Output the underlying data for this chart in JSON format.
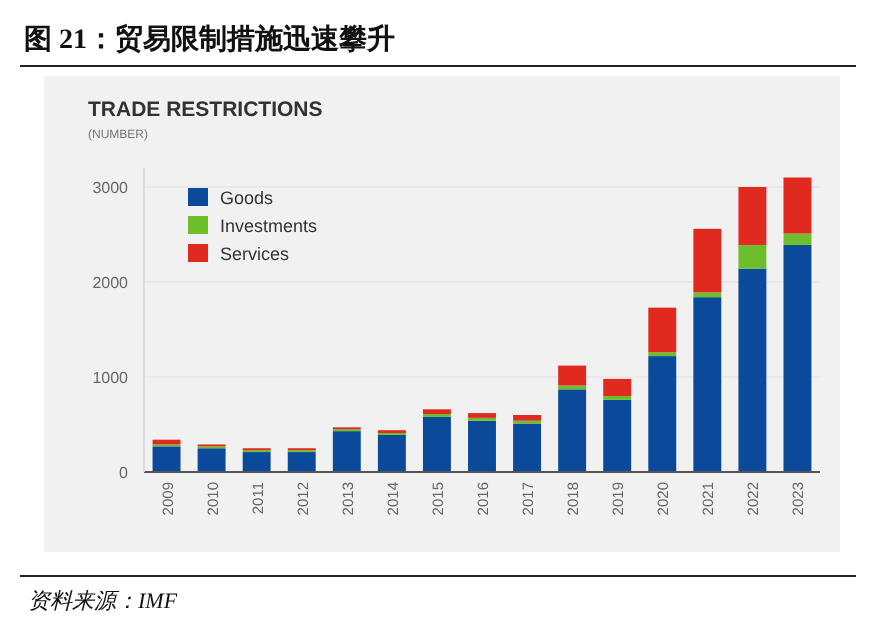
{
  "chart_data": {
    "type": "bar",
    "title": "图 21：贸易限制措施迅速攀升",
    "subtitle": "TRADE RESTRICTIONS",
    "ylabel": "(NUMBER)",
    "annotations": [
      "资料来源：IMF"
    ],
    "categories": [
      "2009",
      "2010",
      "2011",
      "2012",
      "2013",
      "2014",
      "2015",
      "2016",
      "2017",
      "2018",
      "2019",
      "2020",
      "2021",
      "2022",
      "2023"
    ],
    "stacked": true,
    "grid": "y",
    "legend": "top left",
    "ylim": [
      0,
      3200
    ],
    "yticks": [
      0,
      1000,
      2000,
      3000
    ],
    "series": [
      {
        "name": "Goods",
        "color": "#0b4a9a",
        "values": [
          270,
          250,
          210,
          210,
          430,
          390,
          580,
          540,
          510,
          870,
          760,
          1220,
          1840,
          2140,
          2390
        ]
      },
      {
        "name": "Investments",
        "color": "#6cbf2b",
        "values": [
          20,
          20,
          20,
          20,
          20,
          20,
          30,
          30,
          30,
          40,
          40,
          40,
          50,
          250,
          120
        ]
      },
      {
        "name": "Services",
        "color": "#e02a20",
        "values": [
          50,
          20,
          20,
          20,
          20,
          30,
          50,
          50,
          60,
          210,
          180,
          470,
          670,
          610,
          590
        ]
      }
    ]
  }
}
